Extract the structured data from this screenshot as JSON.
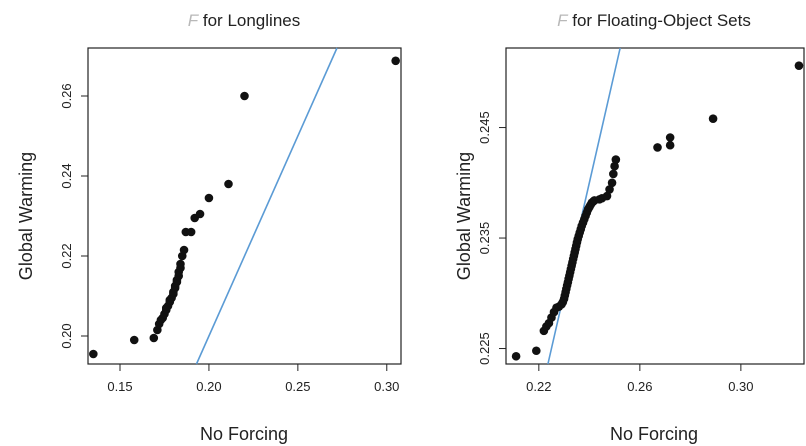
{
  "chart_data": [
    {
      "type": "scatter",
      "title_italic": "F",
      "title_rest": " for Longlines",
      "xlabel": "No Forcing",
      "ylabel": "Global Warming",
      "xlim": [
        0.132,
        0.308
      ],
      "ylim": [
        0.193,
        0.272
      ],
      "xticks": [
        "0.15",
        "0.20",
        "0.25",
        "0.30"
      ],
      "yticks": [
        "0.20",
        "0.22",
        "0.24",
        "0.26"
      ],
      "reference_line": {
        "slope": 1,
        "intercept": 0,
        "color": "#5b9bd5"
      },
      "grid": false,
      "series": [
        {
          "points": [
            [
              0.135,
              0.1955
            ],
            [
              0.158,
              0.199
            ],
            [
              0.169,
              0.1995
            ],
            [
              0.171,
              0.2015
            ],
            [
              0.172,
              0.203
            ],
            [
              0.173,
              0.204
            ],
            [
              0.174,
              0.2045
            ],
            [
              0.175,
              0.2055
            ],
            [
              0.176,
              0.2065
            ],
            [
              0.176,
              0.207
            ],
            [
              0.177,
              0.2075
            ],
            [
              0.178,
              0.2085
            ],
            [
              0.178,
              0.209
            ],
            [
              0.179,
              0.2095
            ],
            [
              0.18,
              0.2105
            ],
            [
              0.18,
              0.211
            ],
            [
              0.181,
              0.212
            ],
            [
              0.181,
              0.2125
            ],
            [
              0.182,
              0.2135
            ],
            [
              0.182,
              0.214
            ],
            [
              0.183,
              0.215
            ],
            [
              0.183,
              0.216
            ],
            [
              0.184,
              0.217
            ],
            [
              0.184,
              0.218
            ],
            [
              0.185,
              0.22
            ],
            [
              0.186,
              0.2215
            ],
            [
              0.187,
              0.226
            ],
            [
              0.19,
              0.226
            ],
            [
              0.192,
              0.2295
            ],
            [
              0.195,
              0.2305
            ],
            [
              0.2,
              0.2345
            ],
            [
              0.211,
              0.238
            ],
            [
              0.22,
              0.26
            ],
            [
              0.305,
              0.2688
            ]
          ]
        }
      ]
    },
    {
      "type": "scatter",
      "title_italic": "F",
      "title_rest": " for Floating-Object Sets",
      "xlabel": "No Forcing",
      "ylabel": "Global Warming",
      "xlim": [
        0.207,
        0.325
      ],
      "ylim": [
        0.2236,
        0.2522
      ],
      "xticks": [
        "0.22",
        "0.26",
        "0.30"
      ],
      "yticks": [
        "0.225",
        "0.235",
        "0.245"
      ],
      "reference_line": {
        "slope": 1,
        "intercept": 0,
        "color": "#5b9bd5"
      },
      "grid": false,
      "series": [
        {
          "points": [
            [
              0.211,
              0.2243
            ],
            [
              0.219,
              0.2248
            ],
            [
              0.222,
              0.2266
            ],
            [
              0.223,
              0.227
            ],
            [
              0.224,
              0.2273
            ],
            [
              0.225,
              0.2278
            ],
            [
              0.226,
              0.2283
            ],
            [
              0.227,
              0.2287
            ],
            [
              0.228,
              0.2288
            ],
            [
              0.229,
              0.229
            ],
            [
              0.2295,
              0.2292
            ],
            [
              0.23,
              0.2295
            ],
            [
              0.2303,
              0.2298
            ],
            [
              0.2306,
              0.2301
            ],
            [
              0.2309,
              0.2304
            ],
            [
              0.2312,
              0.2307
            ],
            [
              0.2315,
              0.231
            ],
            [
              0.2318,
              0.2313
            ],
            [
              0.2321,
              0.2316
            ],
            [
              0.2324,
              0.2319
            ],
            [
              0.2327,
              0.2322
            ],
            [
              0.233,
              0.2325
            ],
            [
              0.2333,
              0.2328
            ],
            [
              0.2336,
              0.2331
            ],
            [
              0.2339,
              0.2334
            ],
            [
              0.2342,
              0.2337
            ],
            [
              0.2345,
              0.234
            ],
            [
              0.2348,
              0.2343
            ],
            [
              0.2351,
              0.2346
            ],
            [
              0.2354,
              0.2349
            ],
            [
              0.2358,
              0.2352
            ],
            [
              0.2362,
              0.2355
            ],
            [
              0.2366,
              0.2358
            ],
            [
              0.237,
              0.2361
            ],
            [
              0.2375,
              0.2364
            ],
            [
              0.238,
              0.2367
            ],
            [
              0.2385,
              0.237
            ],
            [
              0.239,
              0.2373
            ],
            [
              0.2395,
              0.2376
            ],
            [
              0.24,
              0.2378
            ],
            [
              0.2405,
              0.238
            ],
            [
              0.241,
              0.2382
            ],
            [
              0.2415,
              0.2383
            ],
            [
              0.242,
              0.2384
            ],
            [
              0.244,
              0.2385
            ],
            [
              0.245,
              0.2386
            ],
            [
              0.247,
              0.2388
            ],
            [
              0.248,
              0.2394
            ],
            [
              0.249,
              0.24
            ],
            [
              0.2495,
              0.2408
            ],
            [
              0.25,
              0.2415
            ],
            [
              0.2505,
              0.2421
            ],
            [
              0.267,
              0.2432
            ],
            [
              0.272,
              0.2434
            ],
            [
              0.272,
              0.2441
            ],
            [
              0.289,
              0.2458
            ],
            [
              0.323,
              0.2506
            ]
          ]
        }
      ]
    }
  ]
}
